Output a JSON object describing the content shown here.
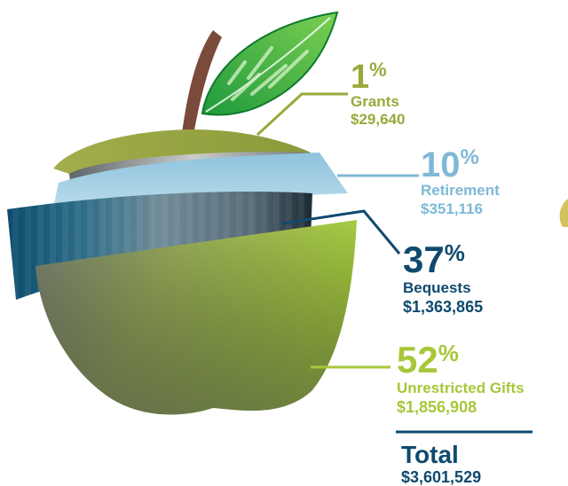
{
  "chart_data": {
    "type": "pie",
    "style": "apple-slices",
    "slices": [
      {
        "pct": 1,
        "pct_sign": "%",
        "label": "Grants",
        "amount": "$29,640",
        "color": "#9aa83a"
      },
      {
        "pct": 10,
        "pct_sign": "%",
        "label": "Retirement",
        "amount": "$351,116",
        "color": "#7fb8d6"
      },
      {
        "pct": 37,
        "pct_sign": "%",
        "label": "Bequests",
        "amount": "$1,363,865",
        "color": "#0e4a6e"
      },
      {
        "pct": 52,
        "pct_sign": "%",
        "label": "Unrestricted Gifts",
        "amount": "$1,856,908",
        "color": "#a7c73a"
      }
    ],
    "total": {
      "label": "Total",
      "amount": "$3,601,529",
      "color": "#0e4a6e"
    }
  }
}
